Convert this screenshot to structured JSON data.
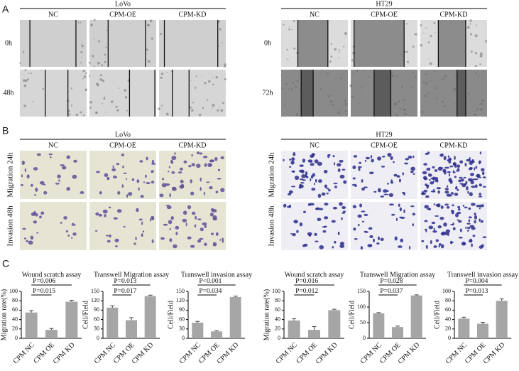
{
  "panel_a": {
    "label": "A",
    "lovo": {
      "title": "LoVo",
      "columns": [
        "NC",
        "CPM-OE",
        "CPM-KD"
      ],
      "rows": [
        "0h",
        "48h"
      ]
    },
    "ht29": {
      "title": "HT29",
      "columns": [
        "NC",
        "CPM-OE",
        "CPM-KD"
      ],
      "rows": [
        "0h",
        "72h"
      ]
    }
  },
  "panel_b": {
    "label": "B",
    "lovo": {
      "title": "LoVo",
      "columns": [
        "NC",
        "CPM-OE",
        "CPM-KD"
      ],
      "rows": [
        "Migration 24h",
        "Invasion 48h"
      ]
    },
    "ht29": {
      "title": "HT29",
      "columns": [
        "NC",
        "CPM-OE",
        "CPM-KD"
      ],
      "rows": [
        "Migration 24h",
        "Invasion 48h"
      ]
    }
  },
  "panel_c": {
    "label": "C"
  },
  "chart_data": [
    {
      "type": "bar",
      "title": "Wound scratch assay",
      "y_label": "Migration rate(%)",
      "categories": [
        "CPM NC",
        "CPM OE",
        "CPM KD"
      ],
      "values": [
        55,
        18,
        78
      ],
      "errors": [
        4,
        3,
        3
      ],
      "color": "#a6a6a6",
      "ylim": [
        0,
        100
      ],
      "yticks": [
        0,
        20,
        40,
        60,
        80,
        100
      ],
      "comparisons": [
        "P=0.006",
        "P=0.015"
      ]
    },
    {
      "type": "bar",
      "title": "Transwell Migration assay",
      "y_label": "Cell/Field",
      "categories": [
        "CPM NC",
        "CPM OE",
        "CPM KD"
      ],
      "values": [
        98,
        58,
        135
      ],
      "errors": [
        6,
        8,
        3
      ],
      "color": "#a6a6a6",
      "ylim": [
        0,
        150
      ],
      "yticks": [
        0,
        30,
        60,
        90,
        120,
        150
      ],
      "comparisons": [
        "P=0.013",
        "P=0.017"
      ]
    },
    {
      "type": "bar",
      "title": "Transwell invasion assay",
      "y_label": "Cell/Field",
      "categories": [
        "CPM NC",
        "CPM OE",
        "CPM KD"
      ],
      "values": [
        50,
        22,
        132
      ],
      "errors": [
        4,
        2,
        3
      ],
      "color": "#a6a6a6",
      "ylim": [
        0,
        150
      ],
      "yticks": [
        0,
        30,
        60,
        90,
        120,
        150
      ],
      "comparisons": [
        "P<0.001",
        "P=0.034"
      ]
    },
    {
      "type": "bar",
      "title": "Wound scratch assay",
      "y_label": "Migration rate(%)",
      "categories": [
        "CPM NC",
        "CPM OE",
        "CPM KD"
      ],
      "values": [
        38,
        18,
        60
      ],
      "errors": [
        4,
        7,
        2
      ],
      "color": "#a6a6a6",
      "ylim": [
        0,
        100
      ],
      "yticks": [
        0,
        20,
        40,
        60,
        80,
        100
      ],
      "comparisons": [
        "P=0.016",
        "P=0.012"
      ]
    },
    {
      "type": "bar",
      "title": "Transwell Migration assay",
      "y_label": "Cell/Field",
      "categories": [
        "CPM NC",
        "CPM OE",
        "CPM KD"
      ],
      "values": [
        80,
        36,
        137
      ],
      "errors": [
        2,
        3,
        2
      ],
      "color": "#a6a6a6",
      "ylim": [
        0,
        150
      ],
      "yticks": [
        0,
        50,
        100,
        150
      ],
      "comparisons": [
        "P=0.028",
        "P=0.037"
      ]
    },
    {
      "type": "bar",
      "title": "Transwell invasion assay",
      "y_label": "Cell/Field",
      "categories": [
        "CPM NC",
        "CPM OE",
        "CPM KD"
      ],
      "values": [
        42,
        31,
        80
      ],
      "errors": [
        3,
        3,
        4
      ],
      "color": "#a6a6a6",
      "ylim": [
        0,
        100
      ],
      "yticks": [
        0,
        20,
        40,
        60,
        80,
        100
      ],
      "comparisons": [
        "P=0.004",
        "P=0.013"
      ]
    }
  ]
}
